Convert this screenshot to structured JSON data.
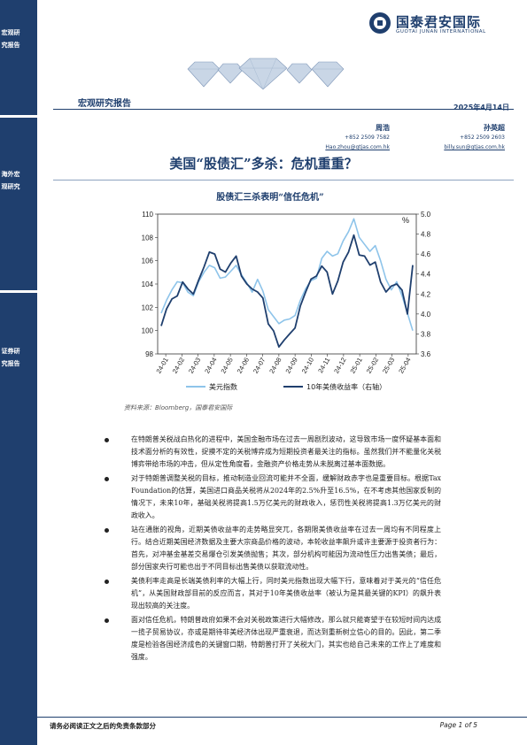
{
  "sidebar": {
    "labels": [
      "宏观研究报告",
      "海外宏观研究",
      "证券研究报告"
    ]
  },
  "header": {
    "logo_cn": "国泰君安国际",
    "logo_en": "GUOTAI JUNAN INTERNATIONAL",
    "report_type": "宏观研究报告",
    "date": "2025年4月14日"
  },
  "authors": [
    {
      "name": "周浩",
      "phone": "+852 2509 7582",
      "email": "Hao.zhou@gtjas.com.hk"
    },
    {
      "name": "孙英超",
      "phone": "+852 2509 2603",
      "email": "billy.sun@gtjas.com.hk"
    }
  ],
  "title": "美国“股债汇”多杀：危机重重？",
  "chart_title": "股债汇三杀表明“信任危机”",
  "chart_data": {
    "type": "line",
    "title": "股债汇三杀表明“信任危机”",
    "x_ticks": [
      "24-01",
      "24-02",
      "24-03",
      "24-04",
      "24-05",
      "24-06",
      "24-07",
      "24-08",
      "24-09",
      "24-10",
      "24-11",
      "24-12",
      "25-01",
      "25-02",
      "25-03",
      "25-04"
    ],
    "ylim_left": [
      98,
      110
    ],
    "yticks_left": [
      98,
      100,
      102,
      104,
      106,
      108,
      110
    ],
    "ylim_right": [
      3.6,
      5.0
    ],
    "yticks_right": [
      "3.6",
      "3.8",
      "4.0",
      "4.2",
      "4.4",
      "4.6",
      "4.8",
      "5.0"
    ],
    "right_unit": "%",
    "series": [
      {
        "name": "美元指数",
        "axis": "left",
        "color": "#8ec4ea",
        "values": [
          101.5,
          102.6,
          103.5,
          104.2,
          104.1,
          103.3,
          103.0,
          104.2,
          105.0,
          105.6,
          105.4,
          104.5,
          104.6,
          105.1,
          105.6,
          104.8,
          104.1,
          103.3,
          104.4,
          103.4,
          101.8,
          101.2,
          100.6,
          100.9,
          101.0,
          101.3,
          102.6,
          103.6,
          104.3,
          104.5,
          106.2,
          106.8,
          106.4,
          106.6,
          107.7,
          108.5,
          109.6,
          108.0,
          107.4,
          106.8,
          107.3,
          106.0,
          104.4,
          103.5,
          104.2,
          103.0,
          101.5,
          100.0
        ]
      },
      {
        "name": "10年美债收益率（右轴）",
        "axis": "right",
        "color": "#1f3f6e",
        "values": [
          3.88,
          4.05,
          4.15,
          4.18,
          4.32,
          4.25,
          4.2,
          4.34,
          4.47,
          4.62,
          4.6,
          4.45,
          4.42,
          4.51,
          4.58,
          4.38,
          4.3,
          4.25,
          4.22,
          4.16,
          3.9,
          3.83,
          3.67,
          3.74,
          3.8,
          3.86,
          4.08,
          4.22,
          4.35,
          4.38,
          4.48,
          4.42,
          4.2,
          4.33,
          4.52,
          4.62,
          4.79,
          4.59,
          4.58,
          4.49,
          4.52,
          4.32,
          4.22,
          4.28,
          4.3,
          4.24,
          4.0,
          4.49
        ]
      }
    ]
  },
  "source": "资料来源：Bloomberg，国泰君安国际",
  "bullets": [
    "在特朗普关税战白热化的进程中，美国金融市场在过去一周剧烈波动，这导致市场一度怀疑基本面和技术面分析的有效性，捉摸不定的关税博弈成为短期投资者最关注的指标。虽然我们并不能量化关税博弈带给市场的冲击，但从定性角度看，金融资产价格走势从未脱离过基本面数据。",
    "对于特朗普调整关税的目标，推动制造业回流可能并不全面，缓解财政赤字也是重要目标。根据Tax Foundation的估算，美国进口商品关税将从2024年的2.5%升至16.5%，在不考虑其他国家反制的情况下，未来10年，基础关税将提高1.5万亿美元的财政收入，惩罚性关税将提高1.3万亿美元的财政收入。",
    "站在通胀的视角，近期美债收益率的走势略显突兀，各期限美债收益率在过去一周均有不同程度上行。结合近期美国经济数据及主要大宗商品价格的波动，本轮收益率飙升或许主要源于投资者行为：首先，对冲基金基差交易爆仓引发美债抛售；其次，部分机构可能因为流动性压力出售美债；最后，部分国家央行可能也出于不同目标出售美债以获取流动性。",
    "美债利率走高是长端美债利率的大幅上行，同时美元指数出现大幅下行，意味着对于美元的“信任危机”，从美国财政部目前的反应而言，其对于10年美债收益率（被认为是其最关键的KPI）的飙升表现出较高的关注度。",
    "面对信任危机，特朗普政府如果不会对关税政策进行大幅修改，那么就只能寄望于在较短时间内达成一揽子贸易协议，亦或是期待非美经济体出现严重衰退，而达到重新树立信心的目的。因此，第二季度是检验各国经济成色的关键窗口期，特朗普打开了关税大门，其实也给自己未来的工作上了难度和强度。"
  ],
  "footer": {
    "disclaimer": "请务必阅读正文之后的免责条款部分",
    "page": "Page 1 of 5"
  }
}
